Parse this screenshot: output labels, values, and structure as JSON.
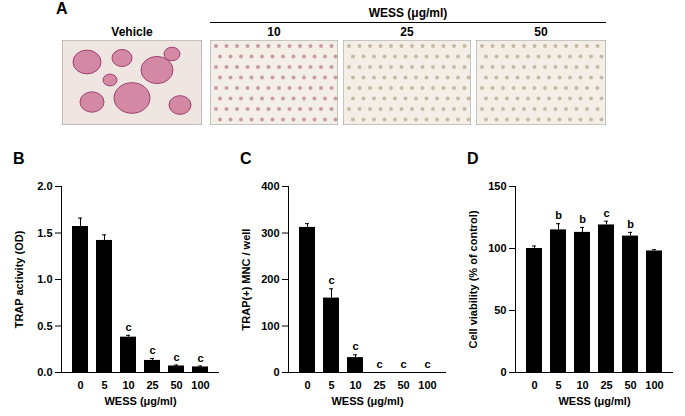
{
  "panel_a": {
    "panel_label": "A",
    "header": "WESS (μg/ml)",
    "images": [
      "Vehicle",
      "10",
      "25",
      "50"
    ]
  },
  "chart_data": [
    {
      "type": "bar",
      "panel_label": "B",
      "x_label": "WESS (μg/ml)",
      "y_label": "TRAP activity (OD)",
      "categories": [
        "0",
        "5",
        "10",
        "25",
        "50",
        "100"
      ],
      "values": [
        1.57,
        1.42,
        0.38,
        0.13,
        0.07,
        0.06
      ],
      "errors": [
        0.09,
        0.06,
        0.02,
        0.02,
        0.01,
        0.01
      ],
      "significance": [
        null,
        null,
        "c",
        "c",
        "c",
        "c"
      ],
      "color": "#000000",
      "ylim": [
        0,
        2.0
      ],
      "yticks": [
        {
          "value": 0,
          "label": "0.0"
        },
        {
          "value": 0.5,
          "label": "0.5"
        },
        {
          "value": 1.0,
          "label": "1.0"
        },
        {
          "value": 1.5,
          "label": "1.5"
        },
        {
          "value": 2.0,
          "label": "2.0"
        }
      ]
    },
    {
      "type": "bar",
      "panel_label": "C",
      "x_label": "WESS (μg/ml)",
      "y_label": "TRAP(+) MNC / well",
      "categories": [
        "0",
        "5",
        "10",
        "25",
        "50",
        "100"
      ],
      "values": [
        312,
        160,
        32,
        0,
        0,
        0
      ],
      "errors": [
        8,
        20,
        6,
        0,
        0,
        0
      ],
      "significance": [
        null,
        "c",
        "c",
        "c",
        "c",
        "c"
      ],
      "color": "#000000",
      "ylim": [
        0,
        400
      ],
      "yticks": [
        0,
        100,
        200,
        300,
        400
      ]
    },
    {
      "type": "bar",
      "panel_label": "D",
      "x_label": "WESS (μg/ml)",
      "y_label": "Cell viability (% of control)",
      "categories": [
        "0",
        "5",
        "10",
        "25",
        "50",
        "100"
      ],
      "values": [
        100,
        115,
        113,
        119,
        110,
        98
      ],
      "errors": [
        2,
        5,
        4,
        3,
        3,
        1
      ],
      "significance": [
        null,
        "b",
        "b",
        "c",
        "b",
        null
      ],
      "color": "#000000",
      "ylim": [
        0,
        150
      ],
      "yticks": [
        0,
        50,
        100,
        150
      ]
    }
  ]
}
